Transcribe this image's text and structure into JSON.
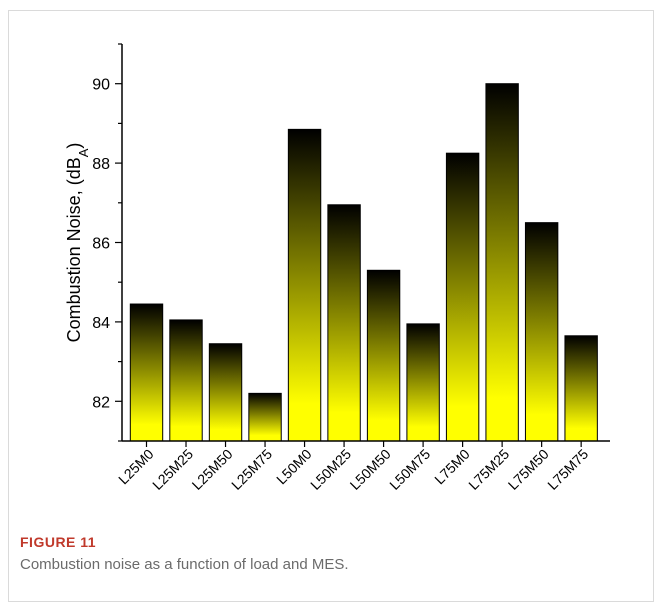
{
  "figure": {
    "label": "FIGURE 11",
    "caption": "Combustion noise as a function of load and MES."
  },
  "chart_data": {
    "type": "bar",
    "title": "",
    "xlabel": "",
    "ylabel": "Combustion Noise, (dB",
    "ylabel_subscript": "A",
    "ylabel_suffix": ")",
    "categories": [
      "L25M0",
      "L25M25",
      "L25M50",
      "L25M75",
      "L50M0",
      "L50M25",
      "L50M50",
      "L50M75",
      "L75M0",
      "L75M25",
      "L75M50",
      "L75M75"
    ],
    "values": [
      84.45,
      84.05,
      83.45,
      82.2,
      88.85,
      86.95,
      85.3,
      83.95,
      88.25,
      90.0,
      86.5,
      83.65
    ],
    "ylim": [
      81.0,
      91.0
    ],
    "yticks": [
      82,
      84,
      86,
      88,
      90
    ],
    "grid": false,
    "colors": {
      "bar_top": "#000000",
      "bar_bottom": "#ffff00",
      "axis": "#000000"
    }
  }
}
